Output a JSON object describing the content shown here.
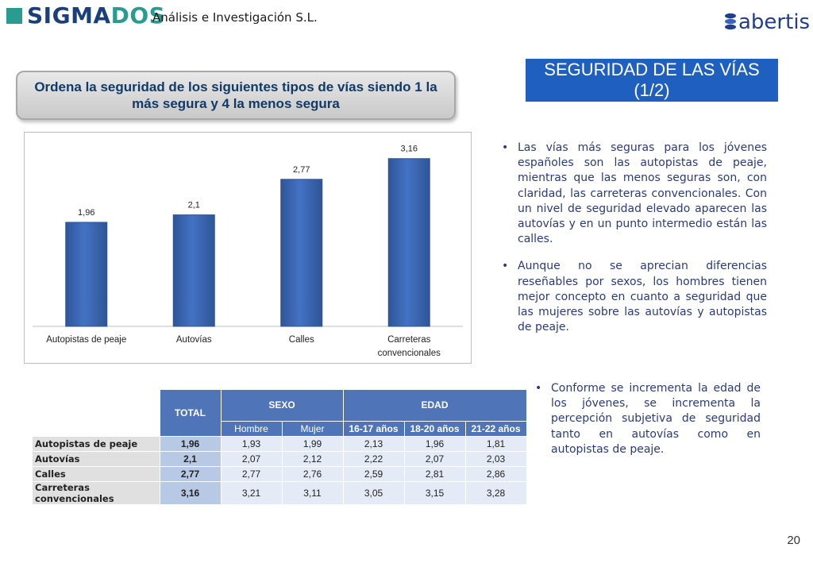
{
  "header": {
    "logo_main_a": "SIGMA",
    "logo_main_b": "DOS",
    "logo_sub": "Análisis e Investigación S.L.",
    "partner_logo": "abertis"
  },
  "question": "Ordena la seguridad de los siguientes tipos de vías siendo 1 la más segura y 4 la menos segura",
  "section_title": "SEGURIDAD DE LAS VÍAS\n(1/2)",
  "chart_data": {
    "type": "bar",
    "categories": [
      "Autopistas de peaje",
      "Autovías",
      "Calles",
      "Carreteras convencionales"
    ],
    "category_lines": [
      [
        "Autopistas de peaje"
      ],
      [
        "Autovías"
      ],
      [
        "Calles"
      ],
      [
        "Carreteras",
        "convencionales"
      ]
    ],
    "values": [
      1.96,
      2.1,
      2.77,
      3.16
    ],
    "value_labels": [
      "1,96",
      "2,1",
      "2,77",
      "3,16"
    ],
    "ylim": [
      0,
      3.5
    ],
    "grid": false,
    "bar_color": "#4472c4"
  },
  "bullets_top": [
    "Las vías más seguras para los jóvenes españoles son las autopistas de peaje, mientras que las menos seguras son, con claridad, las carreteras convencionales. Con un nivel de seguridad elevado aparecen las autovías y en un punto intermedio están las calles.",
    "Aunque no se aprecian diferencias reseñables por sexos, los hombres tienen mejor concepto en cuanto a seguridad que las mujeres sobre las autovías y autopistas de peaje."
  ],
  "bullets_bottom": [
    "Conforme se incrementa la edad de los jóvenes, se incrementa la percepción subjetiva de seguridad tanto en autovías como en autopistas de peaje."
  ],
  "bullet_glyph": "•",
  "table": {
    "total_header": "TOTAL",
    "sexo_header": "SEXO",
    "edad_header": "EDAD",
    "sub_headers": [
      "Hombre",
      "Mujer",
      "16-17 años",
      "18-20 años",
      "21-22 años"
    ],
    "rows": [
      {
        "label": "Autopistas de peaje",
        "total": "1,96",
        "values": [
          "1,93",
          "1,99",
          "2,13",
          "1,96",
          "1,81"
        ]
      },
      {
        "label": "Autovías",
        "total": "2,1",
        "values": [
          "2,07",
          "2,12",
          "2,22",
          "2,07",
          "2,03"
        ]
      },
      {
        "label": "Calles",
        "total": "2,77",
        "values": [
          "2,77",
          "2,76",
          "2,59",
          "2,81",
          "2,86"
        ]
      },
      {
        "label": "Carreteras convencionales",
        "total": "3,16",
        "values": [
          "3,21",
          "3,11",
          "3,05",
          "3,15",
          "3,28"
        ]
      }
    ]
  },
  "page_number": "20"
}
